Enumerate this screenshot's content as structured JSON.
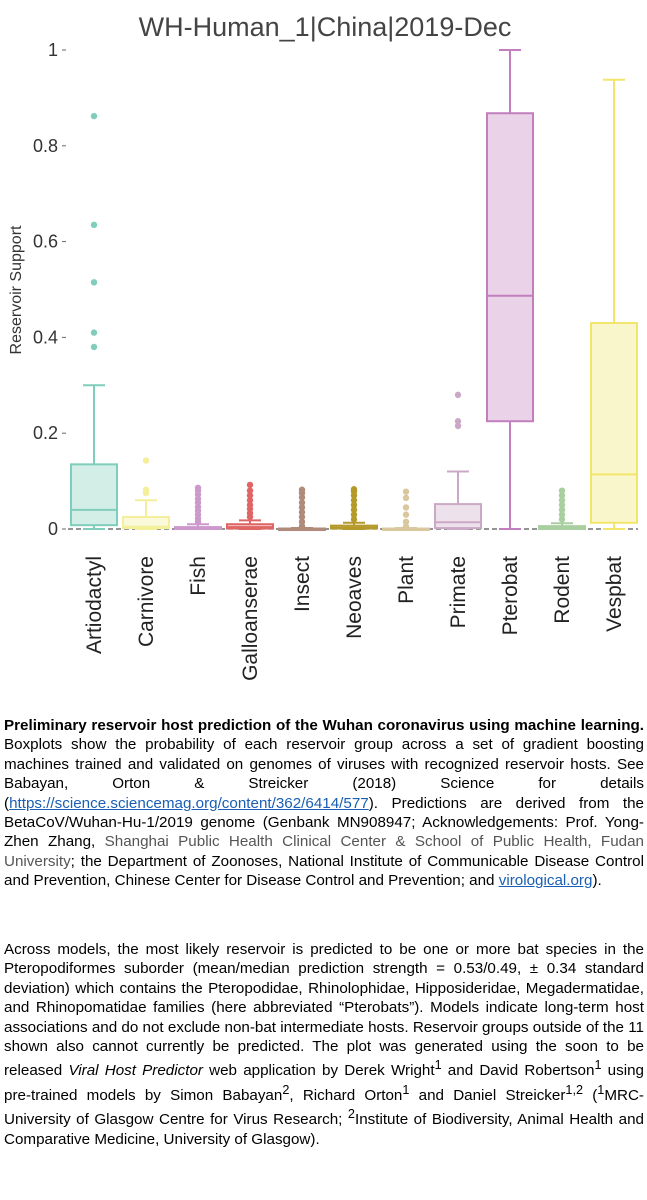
{
  "chart_data": {
    "type": "boxplot",
    "title": "WH-Human_1|China|2019-Dec",
    "ylabel": "Reservoir Support",
    "xlabel": "",
    "ylim": [
      0,
      1
    ],
    "yticks": [
      0,
      0.2,
      0.4,
      0.6,
      0.8,
      1
    ],
    "ytick_labels": [
      "0",
      "0.2",
      "0.4",
      "0.6",
      "0.8",
      "1"
    ],
    "categories": [
      "Artiodactyl",
      "Carnivore",
      "Fish",
      "Galloanserae",
      "Insect",
      "Neoaves",
      "Plant",
      "Primate",
      "Pterobat",
      "Rodent",
      "Vespbat"
    ],
    "boxes": [
      {
        "name": "Artiodactyl",
        "color": "#7fcdbb",
        "min": 0.0,
        "q1": 0.008,
        "median": 0.04,
        "q3": 0.135,
        "max": 0.3,
        "outliers": [
          0.38,
          0.41,
          0.515,
          0.635,
          0.862
        ]
      },
      {
        "name": "Carnivore",
        "color": "#f3ef9a",
        "min": 0.0,
        "q1": 0.002,
        "median": 0.005,
        "q3": 0.025,
        "max": 0.06,
        "outliers": [
          0.075,
          0.082,
          0.143
        ]
      },
      {
        "name": "Fish",
        "color": "#cc99cc",
        "min": 0.0,
        "q1": 0.0,
        "median": 0.001,
        "q3": 0.004,
        "max": 0.01,
        "outliers": [
          0.015,
          0.022,
          0.03,
          0.038,
          0.046,
          0.055,
          0.063,
          0.072,
          0.08,
          0.086
        ]
      },
      {
        "name": "Galloanserae",
        "color": "#e06666",
        "min": 0.0,
        "q1": 0.001,
        "median": 0.004,
        "q3": 0.01,
        "max": 0.018,
        "outliers": [
          0.025,
          0.033,
          0.042,
          0.05,
          0.06,
          0.07,
          0.08,
          0.092
        ]
      },
      {
        "name": "Insect",
        "color": "#b08a7a",
        "min": 0.0,
        "q1": 0.0,
        "median": 0.0,
        "q3": 0.001,
        "max": 0.002,
        "outliers": [
          0.006,
          0.015,
          0.025,
          0.035,
          0.045,
          0.055,
          0.066,
          0.075,
          0.082
        ]
      },
      {
        "name": "Neoaves",
        "color": "#b59a2a",
        "min": 0.0,
        "q1": 0.001,
        "median": 0.003,
        "q3": 0.007,
        "max": 0.013,
        "outliers": [
          0.02,
          0.03,
          0.04,
          0.05,
          0.06,
          0.07,
          0.078,
          0.083
        ]
      },
      {
        "name": "Plant",
        "color": "#d9c89e",
        "min": 0.0,
        "q1": 0.0,
        "median": 0.0,
        "q3": 0.001,
        "max": 0.002,
        "outliers": [
          0.005,
          0.015,
          0.03,
          0.045,
          0.065,
          0.078
        ]
      },
      {
        "name": "Primate",
        "color": "#cba9c6",
        "min": 0.0,
        "q1": 0.002,
        "median": 0.014,
        "q3": 0.052,
        "max": 0.12,
        "outliers": [
          0.215,
          0.225,
          0.28
        ]
      },
      {
        "name": "Pterobat",
        "color": "#c27fbd",
        "min": 0.0,
        "q1": 0.225,
        "median": 0.487,
        "q3": 0.868,
        "max": 1.0,
        "outliers": []
      },
      {
        "name": "Rodent",
        "color": "#a9cfa0",
        "min": 0.0,
        "q1": 0.0,
        "median": 0.002,
        "q3": 0.006,
        "max": 0.012,
        "outliers": [
          0.02,
          0.03,
          0.04,
          0.05,
          0.06,
          0.07,
          0.08
        ]
      },
      {
        "name": "Vespbat",
        "color": "#f2e56b",
        "min": 0.0,
        "q1": 0.013,
        "median": 0.114,
        "q3": 0.43,
        "max": 0.938,
        "outliers": []
      }
    ]
  },
  "captions": {
    "p1_bold": "Preliminary reservoir host prediction of the Wuhan coronavirus using machine learning.",
    "p1_text_a": " Boxplots show the probability of each reservoir group across a set of gradient boosting machines trained and validated on genomes of viruses with recognized reservoir hosts. See Babayan, Orton & Streicker (2018) Science for details (",
    "p1_link": "https://science.sciencemag.org/content/362/6414/577",
    "p1_text_b": "). Predictions are derived from the BetaCoV/Wuhan-Hu-1/2019 genome (Genbank MN908947; Acknowledgements: Prof. Yong-Zhen Zhang, ",
    "p1_grey": "Shanghai Public Health Clinical Center & School of Public Health, Fudan University",
    "p1_text_c": "; the Department of Zoonoses, National Institute of Communicable Disease Control and Prevention, Chinese Center for Disease Control and Prevention; and ",
    "p1_link2": "virological.org",
    "p1_text_d": ").",
    "p2_text_a": "Across models, the most likely reservoir is predicted to be one or more bat species in the Pteropodiformes suborder (mean/median prediction strength = 0.53/0.49, ± 0.34 standard deviation) which contains the Pteropodidae, Rhinolophidae, Hipposideridae, Megadermatidae, and Rhinopomatidae families (here abbreviated “Pterobats”). Models indicate long-term host associations and do not exclude non-bat intermediate hosts. Reservoir groups outside of the 11 shown also cannot currently be predicted. The plot was generated using the soon to be released ",
    "p2_italic": "Viral Host Predictor",
    "p2_text_b": " web application by Derek Wright",
    "p2_sup1": "1",
    "p2_text_c": " and David Robertson",
    "p2_sup2": "1",
    "p2_text_d": " using pre-trained models by Simon Babayan",
    "p2_sup3": "2",
    "p2_text_e": ", Richard Orton",
    "p2_sup4": "1",
    "p2_text_f": " and Daniel Streicker",
    "p2_sup5": "1,2",
    "p2_text_g": " (",
    "p2_sup6": "1",
    "p2_text_h": "MRC-University of Glasgow Centre for Virus Research; ",
    "p2_sup7": "2",
    "p2_text_i": "Institute of Biodiversity, Animal Health and Comparative Medicine, University of Glasgow)."
  }
}
